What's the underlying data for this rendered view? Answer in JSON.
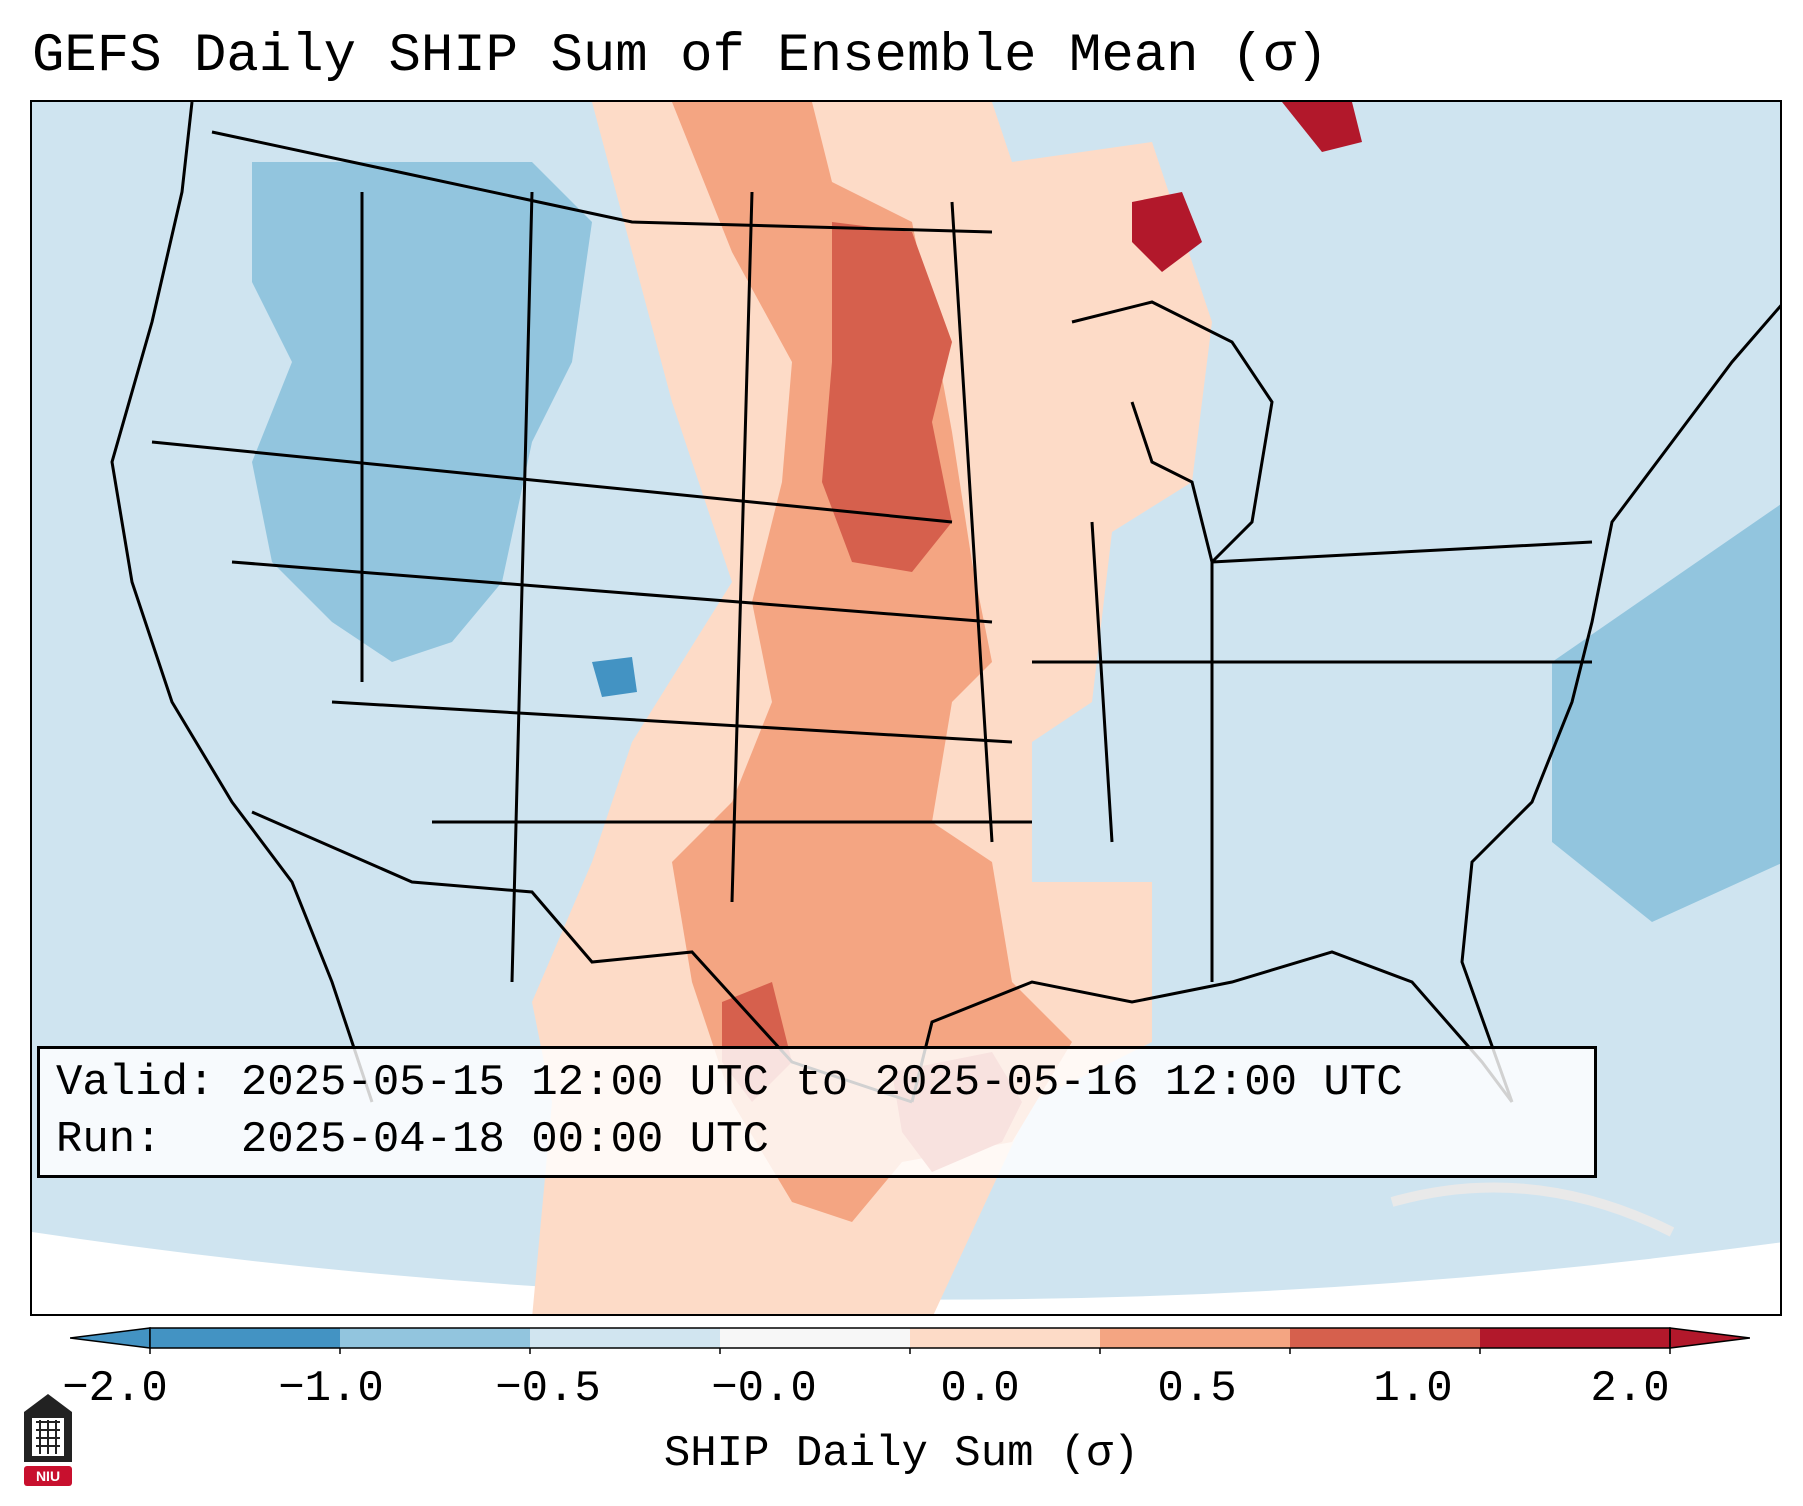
{
  "title": "GEFS Daily SHIP Sum of Ensemble Mean (σ)",
  "info": {
    "valid_line": "Valid: 2025-05-15 12:00 UTC to 2025-05-16 12:00 UTC",
    "run_line": "Run:   2025-04-18 00:00 UTC"
  },
  "colorbar": {
    "label": "SHIP Daily Sum (σ)",
    "tick_labels": [
      "−2.0",
      "−1.0",
      "−0.5",
      "−0.0",
      "0.0",
      "0.5",
      "1.0",
      "2.0"
    ],
    "colors": [
      "#4393c3",
      "#92c5de",
      "#d1e5f0",
      "#f7f7f7",
      "#fddbc7",
      "#f4a582",
      "#d6604d",
      "#b2182b"
    ],
    "extend": "both"
  },
  "map": {
    "region": "Contiguous United States",
    "field": "SHIP daily sum ensemble mean anomaly",
    "background_color": "#d1e5f0",
    "coastline_color": "#000000"
  },
  "logo": {
    "text": "NIU",
    "color": "#c8102e"
  }
}
